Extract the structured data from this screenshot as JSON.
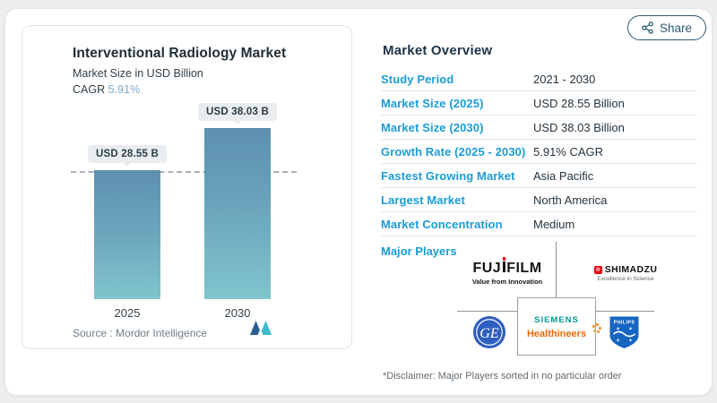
{
  "share": {
    "label": "Share"
  },
  "chart": {
    "title": "Interventional Radiology Market",
    "subtitle": "Market Size in USD Billion",
    "cagr_label": "CAGR",
    "cagr_value": "5.91%",
    "source": "Source :  Mordor Intelligence",
    "accent_color": "#7faacd",
    "bar_gradient": [
      "#5d8fb0",
      "#80c4cc"
    ]
  },
  "chart_data": {
    "type": "bar",
    "categories": [
      "2025",
      "2030"
    ],
    "values": [
      28.55,
      38.03
    ],
    "value_labels": [
      "USD 28.55 B",
      "USD 38.03 B"
    ],
    "title": "Interventional Radiology Market",
    "ylabel": "Market Size in USD Billion",
    "annotations": [
      "dashed reference line at 2025 value"
    ]
  },
  "overview": {
    "heading": "Market Overview",
    "rows": [
      {
        "label": "Study Period",
        "value": "2021 - 2030"
      },
      {
        "label": "Market Size (2025)",
        "value": "USD 28.55 Billion"
      },
      {
        "label": "Market Size (2030)",
        "value": "USD 38.03 Billion"
      },
      {
        "label": "Growth Rate (2025 - 2030)",
        "value": "5.91% CAGR"
      },
      {
        "label": "Fastest Growing Market",
        "value": "Asia Pacific"
      },
      {
        "label": "Largest Market",
        "value": "North America"
      },
      {
        "label": "Market Concentration",
        "value": "Medium"
      }
    ],
    "major_players_label": "Major Players",
    "disclaimer": "*Disclaimer: Major Players sorted in no particular order",
    "label_color": "#1b9cd8"
  },
  "players": {
    "fujifilm": {
      "word_left": "FUJ",
      "word_right": "FILM",
      "tagline": "Value from Innovation"
    },
    "shimadzu": {
      "name": "SHIMADZU",
      "tagline": "Excellence in Science"
    },
    "siemens": {
      "line1": "SIEMENS",
      "line2": "Healthineers"
    },
    "ge": {
      "monogram": "GE"
    },
    "philips": {
      "name": "PHILIPS"
    }
  }
}
